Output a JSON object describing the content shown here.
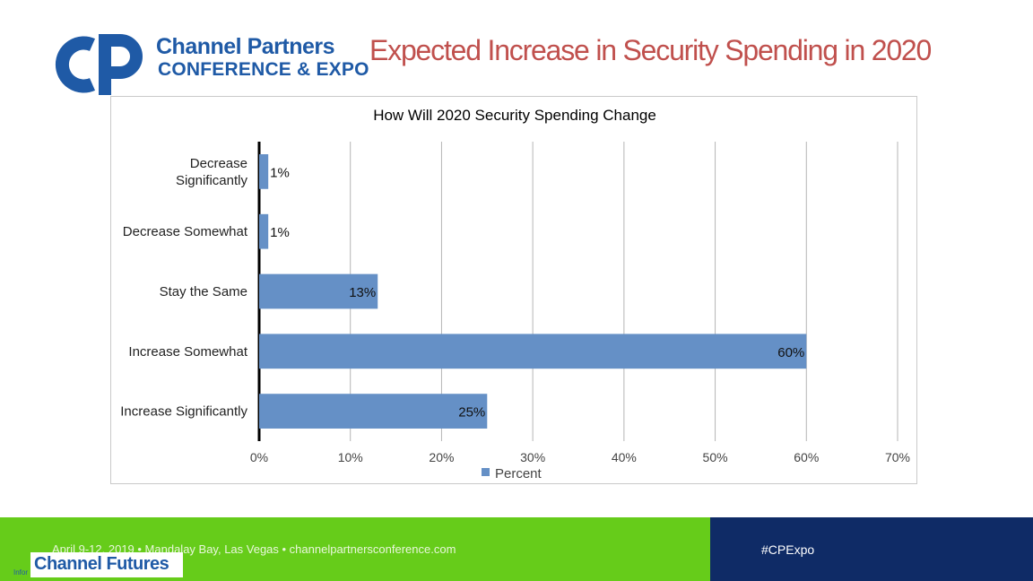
{
  "header": {
    "brand_line1": "Channel Partners",
    "brand_line2": "CONFERENCE & EXPO",
    "slide_title": "Expected Increase in Security Spending in 2020"
  },
  "colors": {
    "brand_blue": "#1f5aa6",
    "title_red": "#c0504d",
    "bar": "#6590c6",
    "footer_green": "#66cc1a",
    "footer_blue": "#0f2b66"
  },
  "chart_data": {
    "type": "bar",
    "orientation": "horizontal",
    "title": "How Will 2020 Security Spending Change",
    "categories": [
      "Decrease Significantly",
      "Decrease Somewhat",
      "Stay the Same",
      "Increase Somewhat",
      "Increase Significantly"
    ],
    "category_display": [
      [
        "Decrease",
        "Significantly"
      ],
      [
        "Decrease Somewhat"
      ],
      [
        "Stay the Same"
      ],
      [
        "Increase Somewhat"
      ],
      [
        "Increase Significantly"
      ]
    ],
    "series": [
      {
        "name": "Percent",
        "values": [
          1,
          1,
          13,
          60,
          25
        ]
      }
    ],
    "value_labels": [
      "1%",
      "1%",
      "13%",
      "60%",
      "25%"
    ],
    "xlim": [
      0,
      70
    ],
    "xticks": [
      0,
      10,
      20,
      30,
      40,
      50,
      60,
      70
    ],
    "xtick_labels": [
      "0%",
      "10%",
      "20%",
      "30%",
      "40%",
      "50%",
      "60%",
      "70%"
    ],
    "grid": true,
    "legend": "bottom-center"
  },
  "footer": {
    "event_text": "April 9-12, 2019 • Mandalay Bay, Las Vegas • channelpartnersconference.com",
    "hashtag": "#CPExpo",
    "sponsor_logo": "Channel Futures",
    "corner_text": "Infor"
  }
}
